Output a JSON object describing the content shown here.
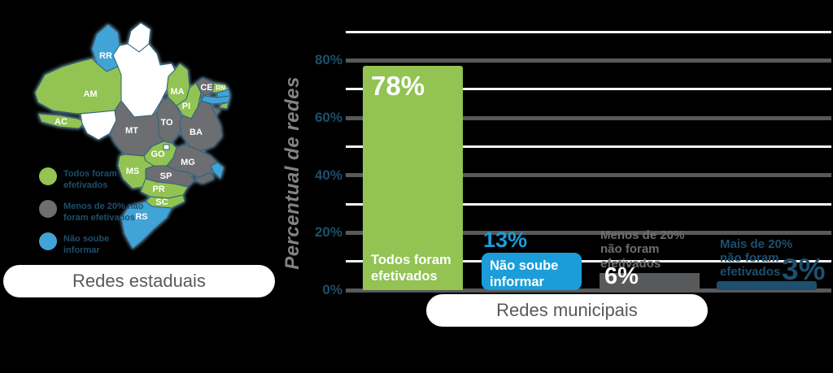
{
  "colors": {
    "green": "#92c353",
    "blue": "#1b9dd9",
    "gray": "#58595b",
    "navy": "#1d4f6e",
    "map_gray": "#6d6e71",
    "map_blue": "#41a3d6",
    "map_white": "#ffffff",
    "axis_title_gray": "#808285",
    "grid_major": "#58595b",
    "grid_minor": "#f3f5f6",
    "pill_text": "#58595b"
  },
  "estadual": {
    "pill_label": "Redes estaduais",
    "legend": [
      {
        "key": "green",
        "label": "Todos foram\nefetivados"
      },
      {
        "key": "map_gray",
        "label": "Menos de 20% não\nforam efetivados"
      },
      {
        "key": "map_blue",
        "label": "Não soube\ninformar"
      }
    ],
    "status_colors": {
      "todos": "green",
      "menos20": "map_gray",
      "nao_soube": "map_blue",
      "sem_dados": "map_white"
    },
    "states": [
      {
        "id": "RR",
        "label": "RR",
        "status": "nao_soube"
      },
      {
        "id": "AP",
        "status": "sem_dados"
      },
      {
        "id": "AM",
        "label": "AM",
        "status": "todos"
      },
      {
        "id": "PA",
        "status": "sem_dados"
      },
      {
        "id": "AC",
        "label": "AC",
        "status": "todos"
      },
      {
        "id": "RO",
        "status": "sem_dados"
      },
      {
        "id": "MT",
        "label": "MT",
        "status": "menos20"
      },
      {
        "id": "TO",
        "label": "TO",
        "status": "menos20"
      },
      {
        "id": "MA",
        "label": "MA",
        "status": "todos"
      },
      {
        "id": "PI",
        "label": "PI",
        "status": "todos"
      },
      {
        "id": "CE",
        "label": "CE",
        "status": "menos20"
      },
      {
        "id": "RN",
        "label": "RN",
        "status": "todos"
      },
      {
        "id": "PB",
        "status": "nao_soube"
      },
      {
        "id": "PE",
        "status": "nao_soube"
      },
      {
        "id": "AL",
        "status": "todos"
      },
      {
        "id": "SE",
        "status": "menos20"
      },
      {
        "id": "BA",
        "label": "BA",
        "status": "menos20"
      },
      {
        "id": "GO",
        "label": "GO",
        "status": "todos"
      },
      {
        "id": "DF",
        "status": "sem_dados"
      },
      {
        "id": "MG",
        "label": "MG",
        "status": "menos20"
      },
      {
        "id": "ES",
        "status": "nao_soube"
      },
      {
        "id": "RJ",
        "status": "menos20"
      },
      {
        "id": "SP",
        "label": "SP",
        "status": "menos20"
      },
      {
        "id": "MS",
        "label": "MS",
        "status": "todos"
      },
      {
        "id": "PR",
        "label": "PR",
        "status": "todos"
      },
      {
        "id": "SC",
        "label": "SC",
        "status": "todos"
      },
      {
        "id": "RS",
        "label": "RS",
        "status": "nao_soube"
      }
    ]
  },
  "municipal": {
    "pill_label": "Redes municipais"
  },
  "chart_data": {
    "type": "bar",
    "title": "",
    "ylabel": "Percentual de redes",
    "xlabel": "Redes municipais",
    "ylim": [
      0,
      90
    ],
    "grid": true,
    "legend_position": "none",
    "ytick_values": [
      0,
      20,
      40,
      60,
      80
    ],
    "ytick_labels": [
      "0%",
      "20%",
      "40%",
      "60%",
      "80%"
    ],
    "minor_grid_values": [
      10,
      30,
      50,
      70,
      90
    ],
    "categories": [
      "Todos foram efetivados",
      "Não soube informar",
      "Menos de 20% não foram efetivados",
      "Mais de 20% não foram efetivados"
    ],
    "values": [
      78,
      13,
      6,
      3
    ],
    "bars": [
      {
        "value": 78,
        "value_label": "78%",
        "text": "Todos foram\nefetivados",
        "color_key": "green"
      },
      {
        "value": 13,
        "value_label": "13%",
        "text": "Não soube\ninformar",
        "color_key": "blue"
      },
      {
        "value": 6,
        "value_label": "6%",
        "text": "Menos de 20%\nnão foram\nefetivados",
        "color_key": "gray"
      },
      {
        "value": 3,
        "value_label": "3%",
        "text": "Mais de 20%\nnão foram\nefetivados",
        "color_key": "navy"
      }
    ]
  }
}
